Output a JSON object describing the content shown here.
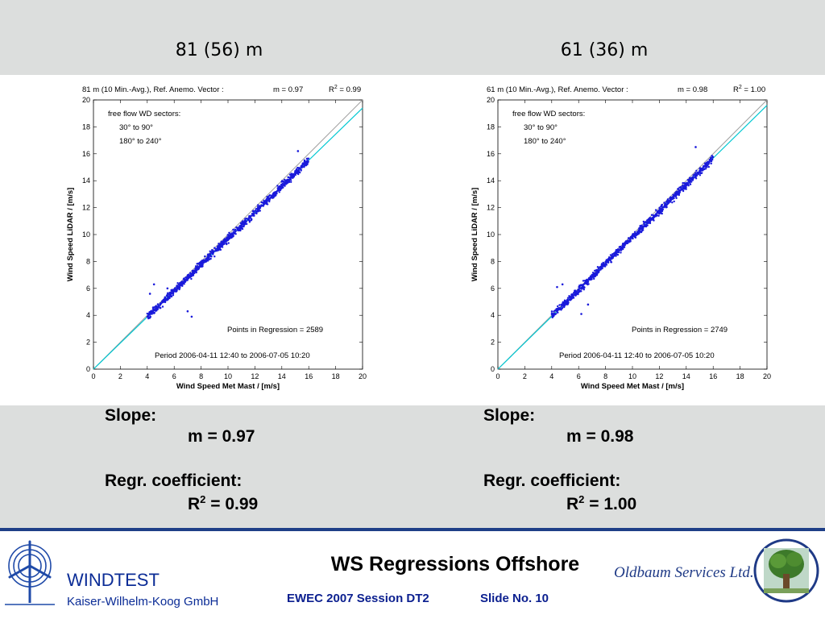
{
  "slide": {
    "title": "WS Regressions Offshore",
    "session": "EWEC 2007 Session DT2",
    "slide_no": "Slide No. 10"
  },
  "logos": {
    "windtest_name": "WINDTEST",
    "windtest_sub": "Kaiser-Wilhelm-Koog GmbH",
    "oldbaum": "Oldbaum Services Ltd."
  },
  "colors": {
    "band": "#dcdedd",
    "divider": "#1f3f87",
    "points": "#1a1adb",
    "regression_line": "#00c8d2",
    "reference_line": "#a0a0a0"
  },
  "panels": [
    {
      "height_title": "81 (56) m",
      "slope_label": "Slope:",
      "slope_value": "m = 0.97",
      "regr_label": "Regr. coefficient:",
      "r2_prefix": "R",
      "r2_sup": "2",
      "r2_rest": " = 0.99"
    },
    {
      "height_title": "61 (36) m",
      "slope_label": "Slope:",
      "slope_value": "m = 0.98",
      "regr_label": "Regr. coefficient:",
      "r2_prefix": "R",
      "r2_sup": "2",
      "r2_rest": " = 1.00"
    }
  ],
  "chart_data": [
    {
      "type": "scatter",
      "title": "81 m (10 Min.-Avg.), Ref. Anemo. Vector :",
      "slope_text": "m =   0.97",
      "r2_text_prefix": "R",
      "r2_text_sup": "2",
      "r2_text_rest": " =   0.99",
      "xlabel": "Wind Speed Met Mast / [m/s]",
      "ylabel": "Wind Speed LiDAR / [m/s]",
      "xlim": [
        0,
        20
      ],
      "ylim": [
        0,
        20
      ],
      "xticks": [
        0,
        2,
        4,
        6,
        8,
        10,
        12,
        14,
        16,
        18,
        20
      ],
      "yticks": [
        0,
        2,
        4,
        6,
        8,
        10,
        12,
        14,
        16,
        18,
        20
      ],
      "annotation_lines": [
        "free flow WD sectors:",
        "30° to 90°",
        "180° to 240°"
      ],
      "points_text": "Points in Regression = 2589",
      "period_text": "Period  2006-04-11 12:40  to  2006-07-05 10:20",
      "n_points": 2589,
      "slope": 0.97,
      "r2": 0.99,
      "x_range": [
        4,
        16
      ],
      "regression_line": {
        "slope": 0.97,
        "intercept": 0
      },
      "reference_line": {
        "slope": 1,
        "intercept": 0
      },
      "outliers": [
        [
          4.5,
          6.3
        ],
        [
          7.0,
          4.3
        ],
        [
          7.3,
          3.9
        ],
        [
          4.2,
          5.6
        ],
        [
          15.2,
          16.2
        ],
        [
          5.5,
          6.0
        ]
      ]
    },
    {
      "type": "scatter",
      "title": "61 m (10 Min.-Avg.), Ref. Anemo. Vector :",
      "slope_text": "m =   0.98",
      "r2_text_prefix": "R",
      "r2_text_sup": "2",
      "r2_text_rest": " =   1.00",
      "xlabel": "Wind Speed Met Mast / [m/s]",
      "ylabel": "Wind Speed LiDAR / [m/s]",
      "xlim": [
        0,
        20
      ],
      "ylim": [
        0,
        20
      ],
      "xticks": [
        0,
        2,
        4,
        6,
        8,
        10,
        12,
        14,
        16,
        18,
        20
      ],
      "yticks": [
        0,
        2,
        4,
        6,
        8,
        10,
        12,
        14,
        16,
        18,
        20
      ],
      "annotation_lines": [
        "free flow WD sectors:",
        "30° to 90°",
        "180° to 240°"
      ],
      "points_text": "Points in Regression = 2749",
      "period_text": "Period  2006-04-11 12:40  to  2006-07-05 10:20",
      "n_points": 2749,
      "slope": 0.98,
      "r2": 1.0,
      "x_range": [
        4,
        16
      ],
      "regression_line": {
        "slope": 0.98,
        "intercept": 0
      },
      "reference_line": {
        "slope": 1,
        "intercept": 0
      },
      "outliers": [
        [
          4.4,
          6.1
        ],
        [
          6.7,
          4.8
        ],
        [
          6.2,
          4.1
        ],
        [
          14.7,
          16.5
        ],
        [
          4.8,
          6.3
        ]
      ]
    }
  ]
}
